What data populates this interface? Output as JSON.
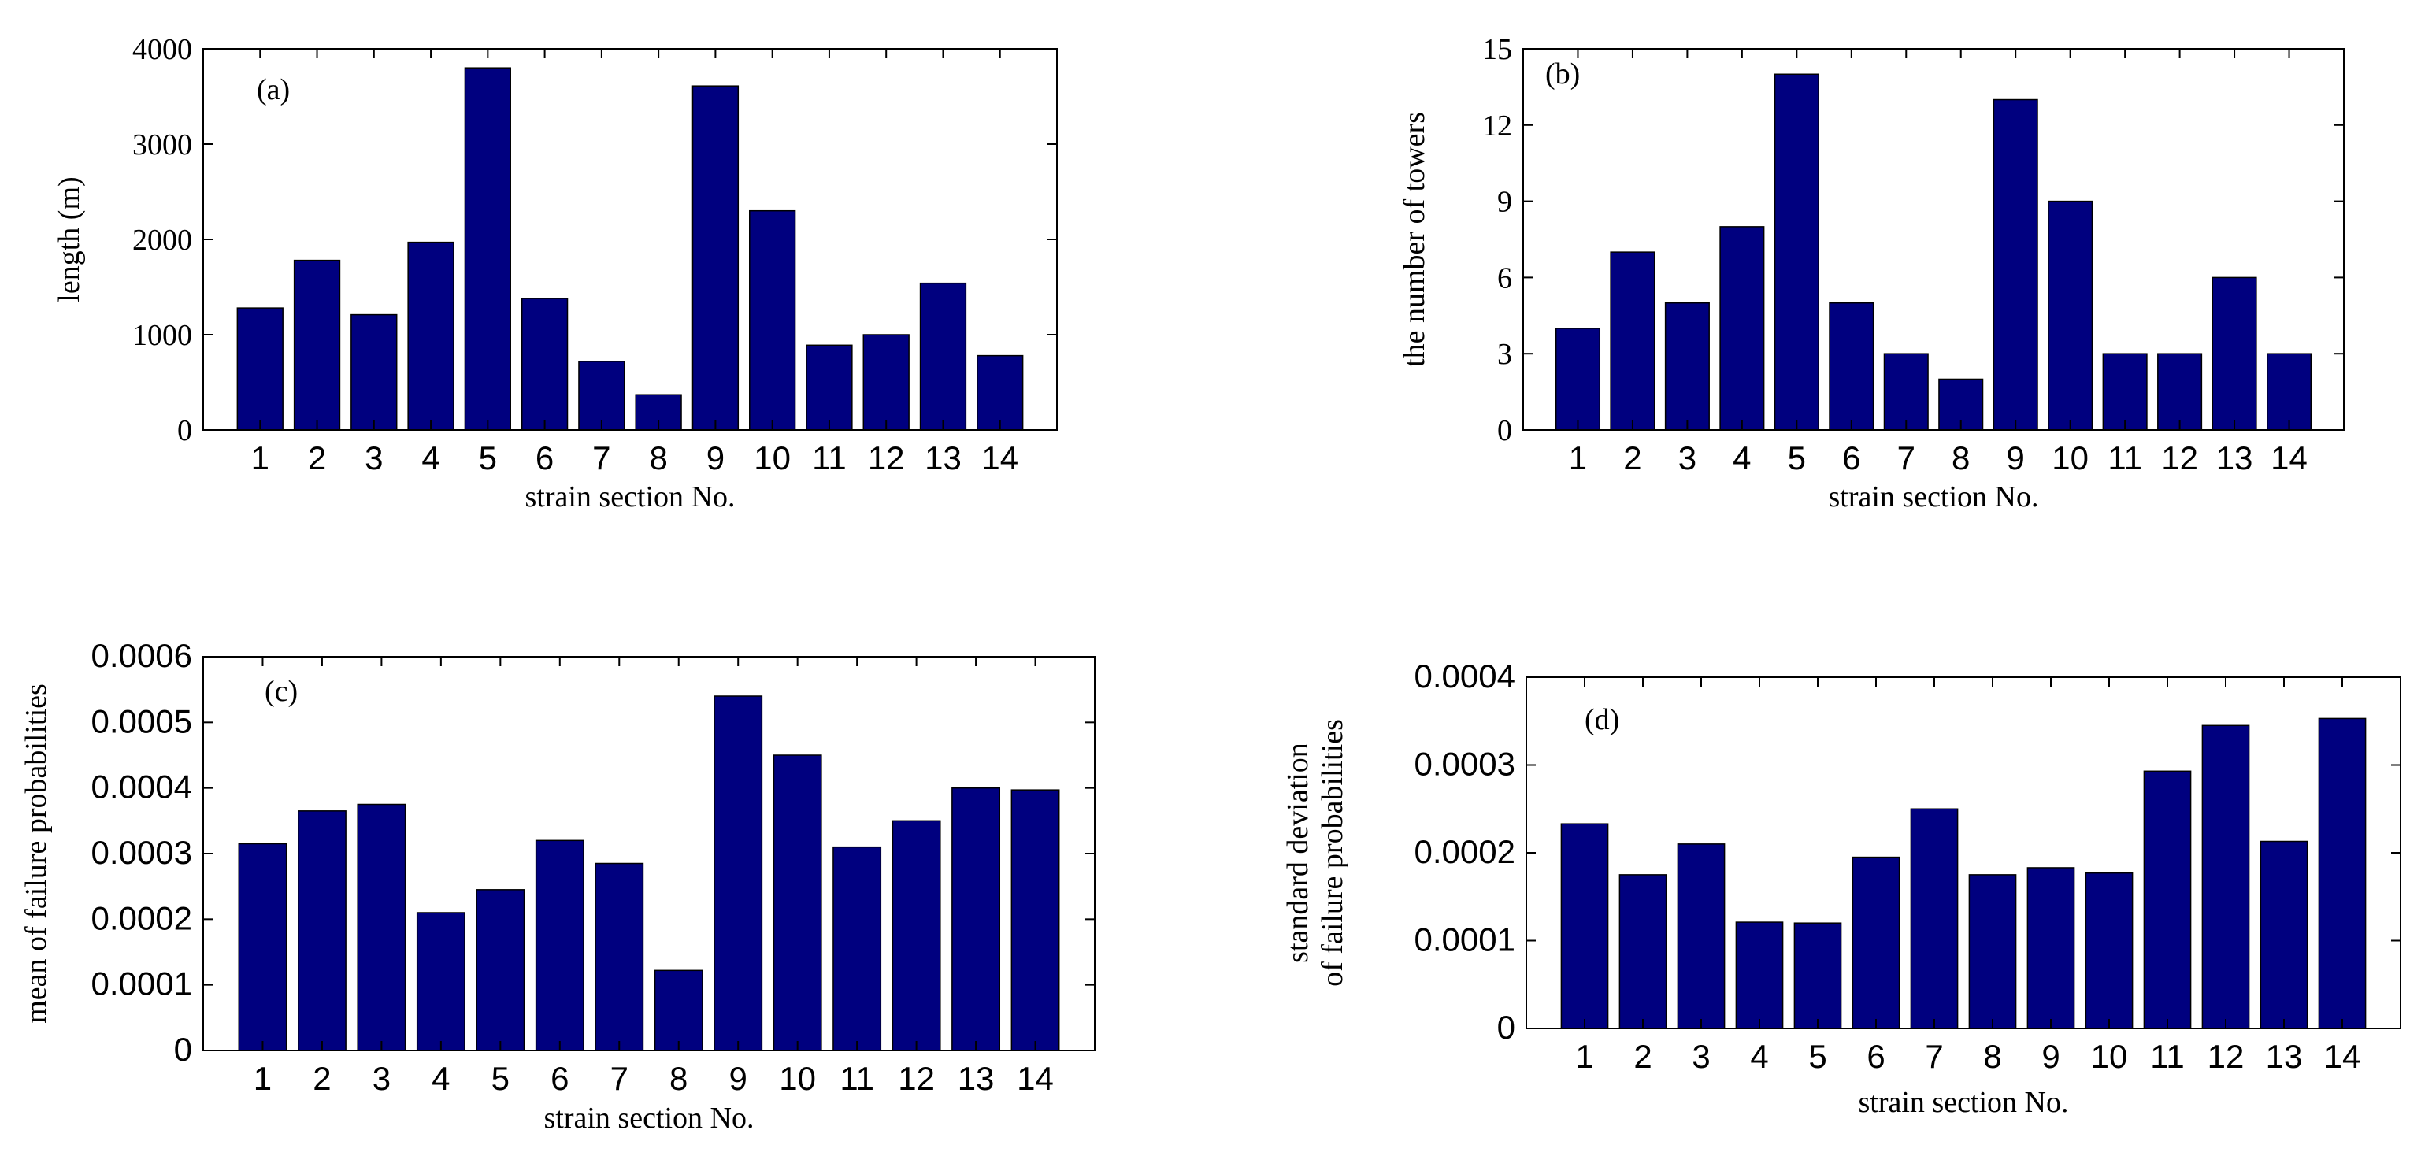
{
  "bar_color": "#00007f",
  "chart_data": [
    {
      "type": "bar",
      "panel_label": "(a)",
      "categories": [
        "1",
        "2",
        "3",
        "4",
        "5",
        "6",
        "7",
        "8",
        "9",
        "10",
        "11",
        "12",
        "13",
        "14"
      ],
      "values": [
        1280,
        1780,
        1210,
        1970,
        3800,
        1380,
        720,
        370,
        3610,
        2300,
        890,
        1000,
        1540,
        780
      ],
      "xlabel": "strain section No.",
      "ylabel": [
        "length (m)"
      ],
      "ylim": [
        0,
        4000
      ],
      "yticks": [
        0,
        1000,
        2000,
        3000,
        4000
      ],
      "ytick_labels": [
        "0",
        "1000",
        "2000",
        "3000",
        "4000"
      ],
      "legend": "none",
      "grid": false
    },
    {
      "type": "bar",
      "panel_label": "(b)",
      "categories": [
        "1",
        "2",
        "3",
        "4",
        "5",
        "6",
        "7",
        "8",
        "9",
        "10",
        "11",
        "12",
        "13",
        "14"
      ],
      "values": [
        4,
        7,
        5,
        8,
        14,
        5,
        3,
        2,
        13,
        9,
        3,
        3,
        6,
        3
      ],
      "xlabel": "strain section No.",
      "ylabel": [
        "the number of towers"
      ],
      "ylim": [
        0,
        15
      ],
      "yticks": [
        0,
        3,
        6,
        9,
        12,
        15
      ],
      "ytick_labels": [
        "0",
        "3",
        "6",
        "9",
        "12",
        "15"
      ],
      "legend": "none",
      "grid": false
    },
    {
      "type": "bar",
      "panel_label": "(c)",
      "categories": [
        "1",
        "2",
        "3",
        "4",
        "5",
        "6",
        "7",
        "8",
        "9",
        "10",
        "11",
        "12",
        "13",
        "14"
      ],
      "values": [
        0.000315,
        0.000365,
        0.000375,
        0.00021,
        0.000245,
        0.00032,
        0.000285,
        0.000122,
        0.00054,
        0.00045,
        0.00031,
        0.00035,
        0.0004,
        0.000397
      ],
      "xlabel": "strain section No.",
      "ylabel": [
        "mean of failure probabilities"
      ],
      "ylim": [
        0,
        0.0006
      ],
      "yticks": [
        0,
        0.0001,
        0.0002,
        0.0003,
        0.0004,
        0.0005,
        0.0006
      ],
      "ytick_labels": [
        "0",
        "0.0001",
        "0.0002",
        "0.0003",
        "0.0004",
        "0.0005",
        "0.0006"
      ],
      "legend": "none",
      "grid": false
    },
    {
      "type": "bar",
      "panel_label": "(d)",
      "categories": [
        "1",
        "2",
        "3",
        "4",
        "5",
        "6",
        "7",
        "8",
        "9",
        "10",
        "11",
        "12",
        "13",
        "14"
      ],
      "values": [
        0.000233,
        0.000175,
        0.00021,
        0.000121,
        0.00012,
        0.000195,
        0.00025,
        0.000175,
        0.000183,
        0.000177,
        0.000293,
        0.000345,
        0.000213,
        0.000353
      ],
      "xlabel": "strain section No.",
      "ylabel": [
        "standard deviation",
        "of failure probabilities"
      ],
      "ylim": [
        0,
        0.0004
      ],
      "yticks": [
        0,
        0.0001,
        0.0002,
        0.0003,
        0.0004
      ],
      "ytick_labels": [
        "0",
        "0.0001",
        "0.0002",
        "0.0003",
        "0.0004"
      ],
      "legend": "none",
      "grid": false
    }
  ]
}
